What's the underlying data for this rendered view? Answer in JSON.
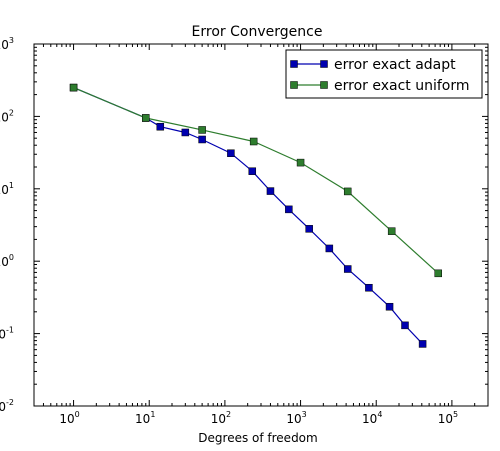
{
  "chart_data": {
    "type": "line",
    "title": "Error Convergence",
    "xlabel": "Degrees of freedom",
    "ylabel": "",
    "xscale": "log",
    "yscale": "log",
    "xlim": [
      0.3,
      300000
    ],
    "ylim": [
      0.01,
      1000
    ],
    "xticks": [
      {
        "value": 1,
        "base": "10",
        "exp": "0"
      },
      {
        "value": 10,
        "base": "10",
        "exp": "1"
      },
      {
        "value": 100,
        "base": "10",
        "exp": "2"
      },
      {
        "value": 1000,
        "base": "10",
        "exp": "3"
      },
      {
        "value": 10000,
        "base": "10",
        "exp": "4"
      },
      {
        "value": 100000,
        "base": "10",
        "exp": "5"
      }
    ],
    "yticks": [
      {
        "value": 0.01,
        "base": "10",
        "exp": "-2"
      },
      {
        "value": 0.1,
        "base": "10",
        "exp": "-1"
      },
      {
        "value": 1,
        "base": "10",
        "exp": "0"
      },
      {
        "value": 10,
        "base": "10",
        "exp": "1"
      },
      {
        "value": 100,
        "base": "10",
        "exp": "2"
      },
      {
        "value": 1000,
        "base": "10",
        "exp": "3"
      }
    ],
    "grid": false,
    "legend_position": "top-right",
    "series": [
      {
        "name": "error exact adapt",
        "color": "#0000b0",
        "x": [
          1,
          9,
          14,
          30,
          50,
          120,
          230,
          400,
          700,
          1300,
          2400,
          4200,
          8000,
          15000,
          24000,
          41000
        ],
        "y": [
          250,
          95,
          72,
          60,
          48,
          31,
          17.5,
          9.3,
          5.2,
          2.8,
          1.5,
          0.78,
          0.43,
          0.235,
          0.13,
          0.072
        ]
      },
      {
        "name": "error exact uniform",
        "color": "#2e7d2e",
        "x": [
          1,
          9,
          50,
          240,
          1000,
          4200,
          16000,
          66000
        ],
        "y": [
          250,
          95,
          65,
          45,
          23,
          9.2,
          2.6,
          0.68
        ]
      }
    ]
  }
}
